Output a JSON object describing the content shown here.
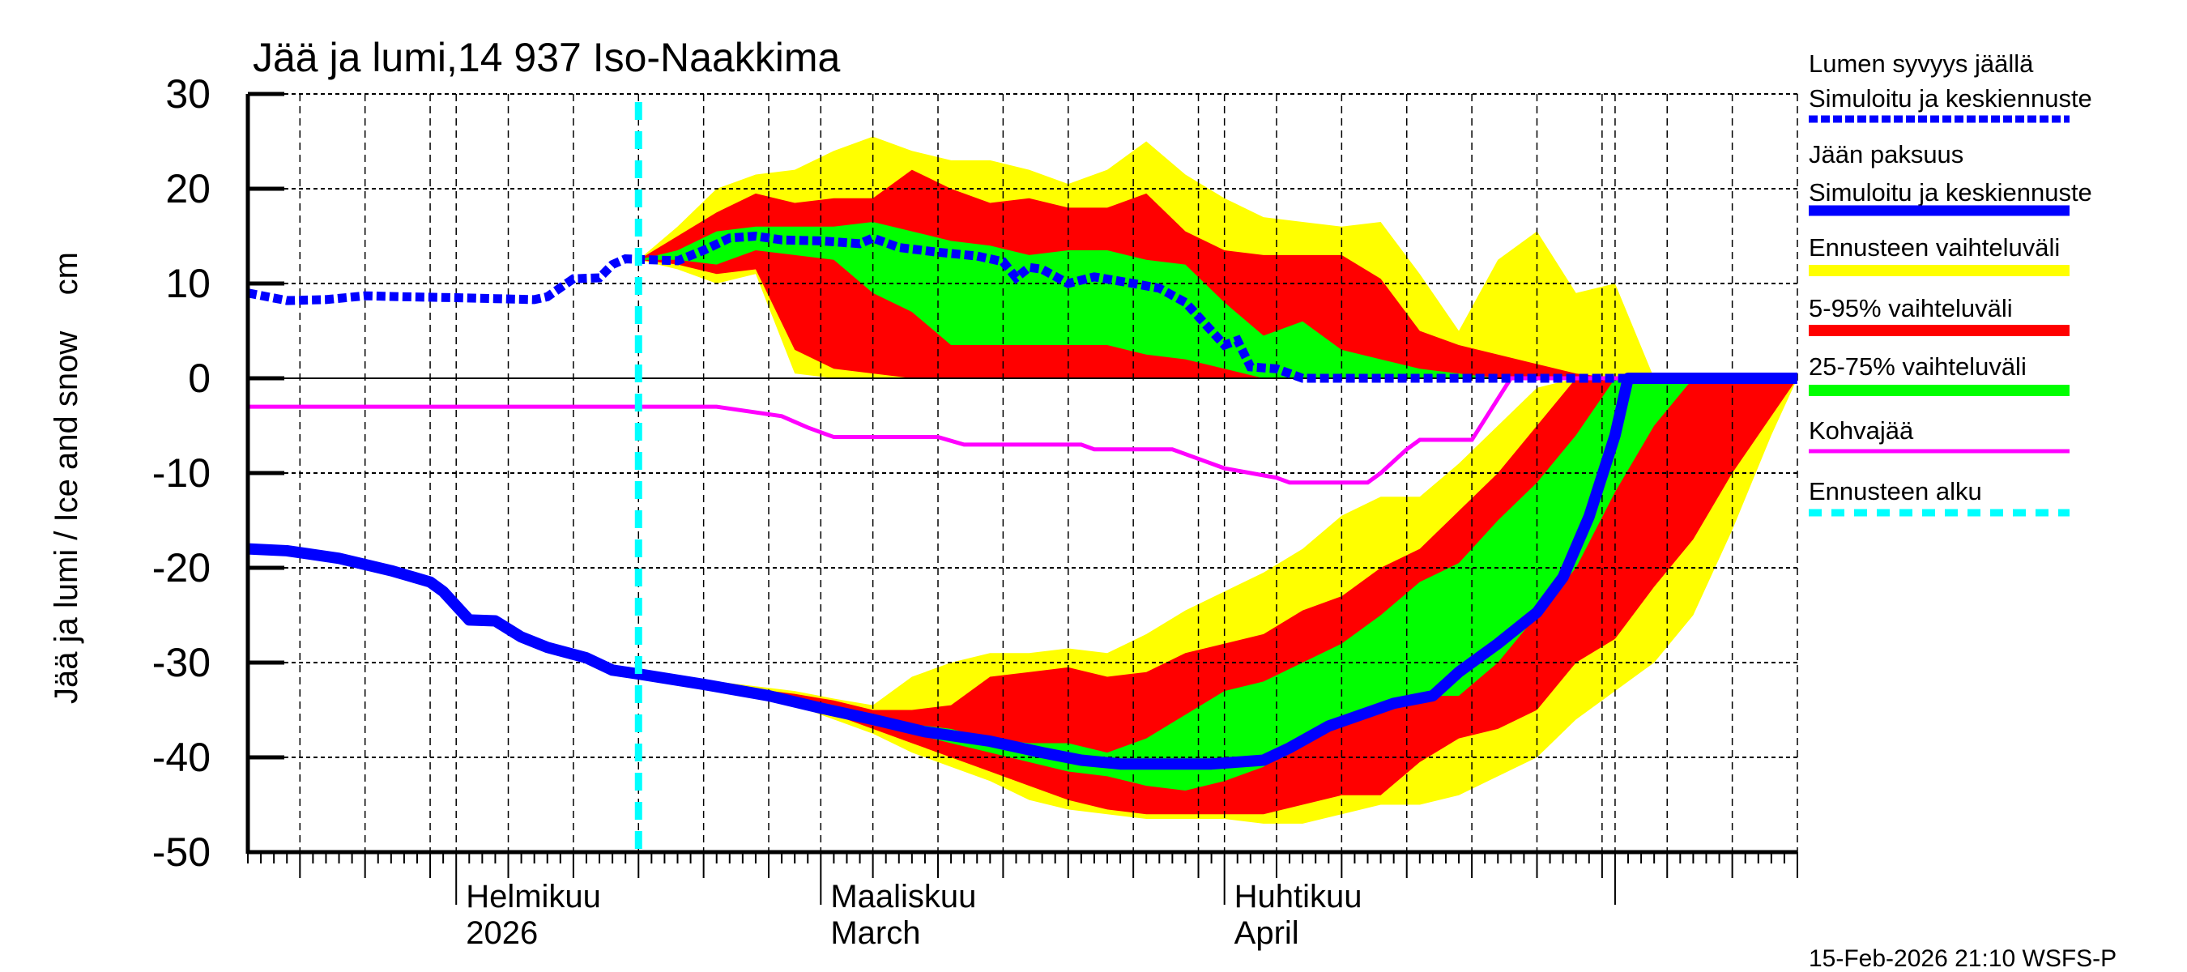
{
  "chart_data": {
    "type": "area",
    "title": "Jää ja lumi,14 937 Iso-Naakkima",
    "ylabel": "Jää ja lumi / Ice and snow    cm",
    "ylim": [
      -50,
      30
    ],
    "xlim": [
      "2026-01-16",
      "2026-05-15"
    ],
    "yticks": [
      "30",
      "20",
      "10",
      "0",
      "-10",
      "-20",
      "-30",
      "-40",
      "-50"
    ],
    "ytick_values": [
      30,
      20,
      10,
      0,
      -10,
      -20,
      -30,
      -40,
      -50
    ],
    "grid": true,
    "month_labels": [
      {
        "date": "2026-02-01",
        "line1": "Helmikuu",
        "line2": "2026"
      },
      {
        "date": "2026-03-01",
        "line1": "Maaliskuu",
        "line2": "March"
      },
      {
        "date": "2026-04-01",
        "line1": "Huhtikuu",
        "line2": "April"
      }
    ],
    "forecast_start": "2026-02-15",
    "colors": {
      "snow": "#0000ff",
      "ice": "#0000ff",
      "range": "#ffff00",
      "p5_95": "#ff0000",
      "p25_75": "#00ff00",
      "slush": "#ff00ff",
      "forecast_start": "#00ffff"
    },
    "legend": [
      {
        "line1": "Lumen syvyys jäällä",
        "line2": "Simuloitu ja keskiennuste",
        "color": "#0000ff",
        "style": "dashed"
      },
      {
        "line1": "Jään paksuus",
        "line2": "Simuloitu ja keskiennuste",
        "color": "#0000ff",
        "style": "solid"
      },
      {
        "line1": "Ennusteen vaihteluväli",
        "color": "#ffff00",
        "style": "band"
      },
      {
        "line1": "5-95% vaihteluväli",
        "color": "#ff0000",
        "style": "band"
      },
      {
        "line1": "25-75% vaihteluväli",
        "color": "#00ff00",
        "style": "band"
      },
      {
        "line1": "Kohvajää",
        "color": "#ff00ff",
        "style": "thin"
      },
      {
        "line1": "Ennusteen alku",
        "color": "#00ffff",
        "style": "dashed"
      }
    ],
    "snow_depth": [
      [
        "2026-01-16",
        9
      ],
      [
        "2026-01-19",
        8.2
      ],
      [
        "2026-01-22",
        8.3
      ],
      [
        "2026-01-25",
        8.7
      ],
      [
        "2026-01-28",
        8.6
      ],
      [
        "2026-02-01",
        8.5
      ],
      [
        "2026-02-04",
        8.4
      ],
      [
        "2026-02-07",
        8.3
      ],
      [
        "2026-02-08",
        8.6
      ],
      [
        "2026-02-10",
        10.5
      ],
      [
        "2026-02-12",
        10.6
      ],
      [
        "2026-02-13",
        12
      ],
      [
        "2026-02-14",
        12.6
      ],
      [
        "2026-02-18",
        12.4
      ],
      [
        "2026-02-20",
        13.5
      ],
      [
        "2026-02-22",
        14.8
      ],
      [
        "2026-02-24",
        15
      ],
      [
        "2026-02-26",
        14.6
      ],
      [
        "2026-03-01",
        14.5
      ],
      [
        "2026-03-04",
        14.2
      ],
      [
        "2026-03-05",
        14.8
      ],
      [
        "2026-03-07",
        13.8
      ],
      [
        "2026-03-10",
        13.3
      ],
      [
        "2026-03-13",
        12.9
      ],
      [
        "2026-03-15",
        12.3
      ],
      [
        "2026-03-16",
        10.6
      ],
      [
        "2026-03-17",
        11.7
      ],
      [
        "2026-03-18",
        11.5
      ],
      [
        "2026-03-20",
        10
      ],
      [
        "2026-03-22",
        10.7
      ],
      [
        "2026-03-25",
        10
      ],
      [
        "2026-03-27",
        9.5
      ],
      [
        "2026-03-29",
        8
      ],
      [
        "2026-03-31",
        5
      ],
      [
        "2026-04-01",
        3.5
      ],
      [
        "2026-04-02",
        4
      ],
      [
        "2026-04-03",
        1.2
      ],
      [
        "2026-04-05",
        1
      ],
      [
        "2026-04-07",
        0
      ],
      [
        "2026-05-15",
        0
      ]
    ],
    "ice_thickness": [
      [
        "2026-01-16",
        -18
      ],
      [
        "2026-01-19",
        -18.2
      ],
      [
        "2026-01-23",
        -19
      ],
      [
        "2026-01-27",
        -20.3
      ],
      [
        "2026-01-30",
        -21.5
      ],
      [
        "2026-01-31",
        -22.5
      ],
      [
        "2026-02-02",
        -25.5
      ],
      [
        "2026-02-04",
        -25.6
      ],
      [
        "2026-02-06",
        -27.3
      ],
      [
        "2026-02-08",
        -28.4
      ],
      [
        "2026-02-11",
        -29.5
      ],
      [
        "2026-02-13",
        -30.8
      ],
      [
        "2026-02-15",
        -31.2
      ],
      [
        "2026-02-20",
        -32.3
      ],
      [
        "2026-02-25",
        -33.5
      ],
      [
        "2026-03-01",
        -34.8
      ],
      [
        "2026-03-05",
        -36
      ],
      [
        "2026-03-09",
        -37.3
      ],
      [
        "2026-03-14",
        -38.3
      ],
      [
        "2026-03-18",
        -39.5
      ],
      [
        "2026-03-21",
        -40.3
      ],
      [
        "2026-03-24",
        -40.7
      ],
      [
        "2026-03-31",
        -40.7
      ],
      [
        "2026-04-04",
        -40.3
      ],
      [
        "2026-04-06",
        -39
      ],
      [
        "2026-04-09",
        -36.7
      ],
      [
        "2026-04-14",
        -34.3
      ],
      [
        "2026-04-17",
        -33.5
      ],
      [
        "2026-04-19",
        -31
      ],
      [
        "2026-04-22",
        -28
      ],
      [
        "2026-04-25",
        -24.7
      ],
      [
        "2026-04-27",
        -21
      ],
      [
        "2026-04-29",
        -14.6
      ],
      [
        "2026-05-01",
        -6
      ],
      [
        "2026-05-02",
        0
      ],
      [
        "2026-05-15",
        0
      ]
    ],
    "slush_ice": [
      [
        "2026-01-16",
        -3
      ],
      [
        "2026-02-21",
        -3
      ],
      [
        "2026-02-26",
        -4
      ],
      [
        "2026-02-28",
        -5.2
      ],
      [
        "2026-03-02",
        -6.2
      ],
      [
        "2026-03-10",
        -6.2
      ],
      [
        "2026-03-12",
        -7
      ],
      [
        "2026-03-21",
        -7
      ],
      [
        "2026-03-22",
        -7.5
      ],
      [
        "2026-03-28",
        -7.5
      ],
      [
        "2026-03-30",
        -8.5
      ],
      [
        "2026-04-01",
        -9.5
      ],
      [
        "2026-04-03",
        -10
      ],
      [
        "2026-04-05",
        -10.5
      ],
      [
        "2026-04-06",
        -11
      ],
      [
        "2026-04-12",
        -11
      ],
      [
        "2026-04-13",
        -10
      ],
      [
        "2026-04-15",
        -7.5
      ],
      [
        "2026-04-16",
        -6.5
      ],
      [
        "2026-04-20",
        -6.5
      ],
      [
        "2026-04-23",
        0
      ],
      [
        "2026-05-15",
        0
      ]
    ],
    "band_dates": [
      "2026-02-15",
      "2026-02-18",
      "2026-02-21",
      "2026-02-24",
      "2026-02-27",
      "2026-03-02",
      "2026-03-05",
      "2026-03-08",
      "2026-03-11",
      "2026-03-14",
      "2026-03-17",
      "2026-03-20",
      "2026-03-23",
      "2026-03-26",
      "2026-03-29",
      "2026-04-01",
      "2026-04-04",
      "2026-04-07",
      "2026-04-10",
      "2026-04-13",
      "2026-04-16",
      "2026-04-19",
      "2026-04-22",
      "2026-04-25",
      "2026-04-28",
      "2026-05-01",
      "2026-05-04",
      "2026-05-07",
      "2026-05-10",
      "2026-05-13",
      "2026-05-15"
    ],
    "snow_bands": {
      "min": [
        12.5,
        11.5,
        10,
        11,
        0.5,
        0,
        0,
        0,
        0,
        0,
        0,
        0,
        0,
        0,
        0,
        0,
        0,
        0,
        0,
        0,
        0,
        0,
        0,
        0,
        0,
        0,
        0,
        0,
        0,
        0,
        0
      ],
      "p5": [
        12.5,
        12,
        11,
        11.5,
        3,
        1,
        0.5,
        0,
        0,
        0,
        0,
        0,
        0,
        0,
        0,
        0,
        0,
        0,
        0,
        0,
        0,
        0,
        0,
        0,
        0,
        0,
        0,
        0,
        0,
        0,
        0
      ],
      "p25": [
        12.5,
        12.5,
        12,
        13.5,
        13,
        12.5,
        9,
        7,
        3.5,
        3.5,
        3.5,
        3.5,
        3.5,
        2.5,
        2,
        1,
        0,
        0,
        0,
        0,
        0,
        0,
        0,
        0,
        0,
        0,
        0,
        0,
        0,
        0,
        0
      ],
      "p75": [
        12.5,
        13.5,
        15.5,
        16,
        16,
        16,
        16.5,
        15.5,
        14.5,
        14,
        13,
        13.5,
        13.5,
        12.5,
        12,
        8,
        4.5,
        6,
        3,
        2,
        1,
        0.5,
        0,
        0,
        0,
        0,
        0,
        0,
        0,
        0,
        0
      ],
      "p95": [
        12.5,
        15,
        17.5,
        19.5,
        18.5,
        19,
        19,
        22,
        20,
        18.5,
        19,
        18,
        18,
        19.5,
        15.5,
        13.5,
        13,
        13,
        13,
        10.5,
        5,
        3.5,
        2.5,
        1.5,
        0.5,
        0,
        0,
        0,
        0,
        0,
        0
      ],
      "max": [
        12.5,
        16,
        20,
        21.5,
        22,
        24,
        25.5,
        24,
        23,
        23,
        22,
        20.5,
        22,
        25,
        21.5,
        19,
        17,
        16.5,
        16,
        16.5,
        11,
        5,
        12.5,
        15.5,
        9,
        10,
        0,
        0,
        0,
        0,
        0
      ]
    },
    "ice_bands": {
      "min": [
        -31.2,
        -31.8,
        -32.5,
        -33.5,
        -34.5,
        -36,
        -37.5,
        -39.5,
        -41,
        -42.5,
        -44.5,
        -45.5,
        -46,
        -46.5,
        -46.5,
        -46.5,
        -47,
        -47,
        -46,
        -45,
        -45,
        -44,
        -42,
        -40,
        -36,
        -33,
        -30,
        -25,
        -16,
        -6,
        0
      ],
      "p5": [
        -31.2,
        -31.8,
        -32.5,
        -33.4,
        -34.3,
        -35.5,
        -37,
        -38.5,
        -40,
        -41.5,
        -43,
        -44.5,
        -45.5,
        -46,
        -46,
        -46,
        -46,
        -45,
        -44,
        -44,
        -40.5,
        -38,
        -37,
        -35,
        -30,
        -27.5,
        -22,
        -17,
        -10,
        -4,
        0
      ],
      "p25": [
        -31.2,
        -31.7,
        -32.4,
        -33.2,
        -34,
        -35,
        -36.5,
        -37.5,
        -38.5,
        -39.5,
        -40.5,
        -41.5,
        -42,
        -43,
        -43.5,
        -42.5,
        -41,
        -38,
        -36,
        -35,
        -33.5,
        -33.5,
        -30,
        -25,
        -20,
        -12,
        -5,
        0,
        0,
        0,
        0
      ],
      "p75": [
        -31.2,
        -31.6,
        -32.2,
        -33,
        -33.6,
        -34.5,
        -35.5,
        -36.5,
        -37,
        -38,
        -38.5,
        -38.5,
        -39.5,
        -38,
        -35.5,
        -33,
        -32,
        -30,
        -28,
        -25,
        -21.5,
        -19.5,
        -15,
        -11,
        -6,
        0,
        0,
        0,
        0,
        0,
        0
      ],
      "p95": [
        -31.2,
        -31.5,
        -32,
        -32.8,
        -33.3,
        -34,
        -35,
        -35,
        -34.5,
        -31.5,
        -31,
        -30.5,
        -31.5,
        -31,
        -29,
        -28,
        -27,
        -24.5,
        -23,
        -20,
        -18,
        -14,
        -10,
        -5,
        0,
        0,
        0,
        0,
        0,
        0,
        0
      ],
      "max": [
        -31.2,
        -31.5,
        -32,
        -32.5,
        -33,
        -33.8,
        -34.5,
        -31.5,
        -30,
        -29,
        -29,
        -28.5,
        -29,
        -27,
        -24.5,
        -22.5,
        -20.5,
        -18,
        -14.5,
        -12.5,
        -12.5,
        -9,
        -5,
        -1,
        0,
        0,
        0,
        0,
        0,
        0,
        0
      ]
    },
    "timestamp": "15-Feb-2026 21:10 WSFS-P"
  }
}
